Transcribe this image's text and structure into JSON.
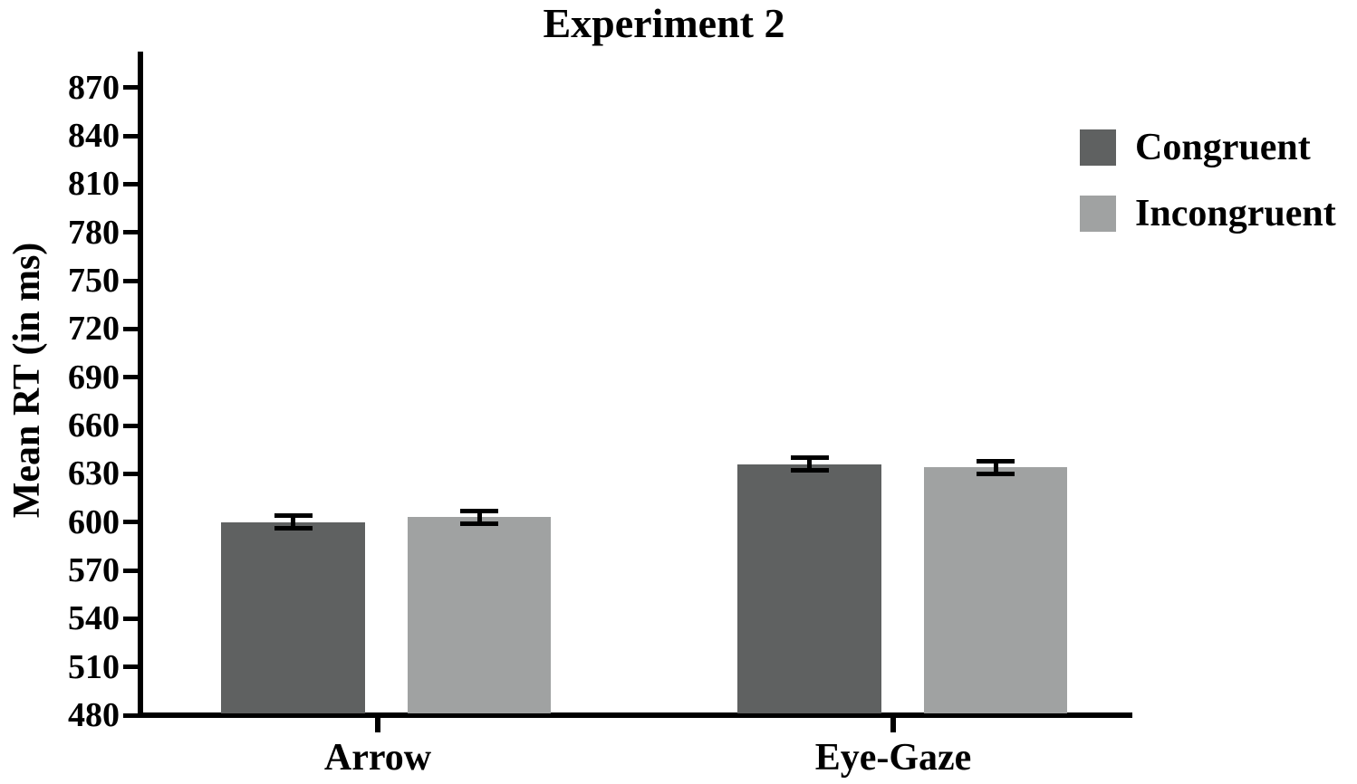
{
  "chart_data": {
    "type": "bar",
    "title": "Experiment 2",
    "ylabel": "Mean RT (in ms)",
    "xlabel": "",
    "categories": [
      "Arrow",
      "Eye-Gaze"
    ],
    "series": [
      {
        "name": "Congruent",
        "color": "#5f6161",
        "values": [
          600,
          636
        ],
        "errors": [
          4,
          4
        ]
      },
      {
        "name": "Incongruent",
        "color": "#a0a2a2",
        "values": [
          603,
          634
        ],
        "errors": [
          4,
          4
        ]
      }
    ],
    "ylim": [
      480,
      890
    ],
    "yticks": [
      480,
      510,
      540,
      570,
      600,
      630,
      660,
      690,
      720,
      750,
      780,
      810,
      840,
      870
    ],
    "grid": false,
    "legend_position": "top-right",
    "axis_color": "#000000",
    "error_bar_color": "#000000"
  }
}
